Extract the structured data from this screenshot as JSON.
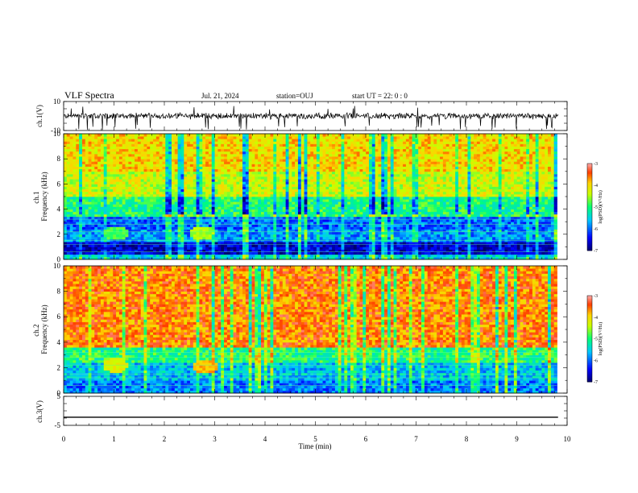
{
  "header": {
    "title": "VLF Spectra",
    "date": "Jul. 21, 2024",
    "station": "station=OUJ",
    "start": "start UT =  22: 0  : 0"
  },
  "chart_data": [
    {
      "type": "line",
      "panel": "ch1-waveform",
      "ylabel": "ch.1(V)",
      "ylim": [
        -10,
        10
      ],
      "yticks": [
        "10",
        "-10"
      ],
      "xlim": [
        0,
        10
      ],
      "description_series": {
        "name": "",
        "baseline": 0,
        "noise_amplitude": 2,
        "spikes_to": -10
      }
    },
    {
      "type": "heatmap",
      "panel": "ch1-spectrogram",
      "ylabel": "ch.1\nFrequency (kHz)",
      "ylim": [
        0,
        10
      ],
      "yticks": [
        "0",
        "2",
        "4",
        "6",
        "8",
        "10"
      ],
      "xlim": [
        0,
        9.8
      ],
      "colorbar": {
        "label": "log(PSD)(V²/Hz)",
        "range": [
          -7,
          -3
        ],
        "ticks": [
          "-3",
          "-4",
          "-5",
          "-6",
          "-7"
        ]
      },
      "bands": [
        {
          "fmin": 0.0,
          "fmax": 0.5,
          "level": -5.5
        },
        {
          "fmin": 0.5,
          "fmax": 1.5,
          "level": -6.6
        },
        {
          "fmin": 1.5,
          "fmax": 2.5,
          "level": -5.8
        },
        {
          "fmin": 2.5,
          "fmax": 3.5,
          "level": -6.0
        },
        {
          "fmin": 3.5,
          "fmax": 5.0,
          "level": -5.0
        },
        {
          "fmin": 5.0,
          "fmax": 7.0,
          "level": -4.3
        },
        {
          "fmin": 7.0,
          "fmax": 10.0,
          "level": -4.0
        }
      ],
      "emissions": [
        {
          "t": 2.7,
          "f": 2.0,
          "level": -4.5
        },
        {
          "t": 1.0,
          "f": 2.0,
          "level": -4.8
        }
      ]
    },
    {
      "type": "heatmap",
      "panel": "ch2-spectrogram",
      "ylabel": "ch.2\nFrequency (kHz)",
      "ylim": [
        0,
        10
      ],
      "yticks": [
        "0",
        "2",
        "4",
        "6",
        "8",
        "10"
      ],
      "xlim": [
        0,
        9.8
      ],
      "colorbar": {
        "label": "log(PSD)(V²/Hz)",
        "range": [
          -7,
          -3
        ],
        "ticks": [
          "-3",
          "-4",
          "-5",
          "-6",
          "-7"
        ]
      },
      "bands": [
        {
          "fmin": 0.0,
          "fmax": 1.0,
          "level": -5.9
        },
        {
          "fmin": 1.0,
          "fmax": 2.5,
          "level": -5.6
        },
        {
          "fmin": 2.5,
          "fmax": 3.7,
          "level": -5.0
        },
        {
          "fmin": 3.7,
          "fmax": 10.0,
          "level": -3.6
        }
      ],
      "emissions": [
        {
          "t": 2.8,
          "f": 2.0,
          "level": -3.8
        },
        {
          "t": 1.0,
          "f": 2.1,
          "level": -4.2
        }
      ]
    },
    {
      "type": "line",
      "panel": "ch3-waveform",
      "ylabel": "ch.3(V)",
      "ylim": [
        -5,
        5
      ],
      "yticks": [
        "5",
        "-5"
      ],
      "xlim": [
        0,
        10
      ],
      "description_series": {
        "name": "",
        "baseline": -2.2,
        "noise_amplitude": 0,
        "spikes_to": null
      }
    }
  ],
  "xaxis": {
    "label": "Time (min)",
    "ticks": [
      "0",
      "1",
      "2",
      "3",
      "4",
      "5",
      "6",
      "7",
      "8",
      "9",
      "10"
    ],
    "range": [
      0,
      10
    ]
  }
}
